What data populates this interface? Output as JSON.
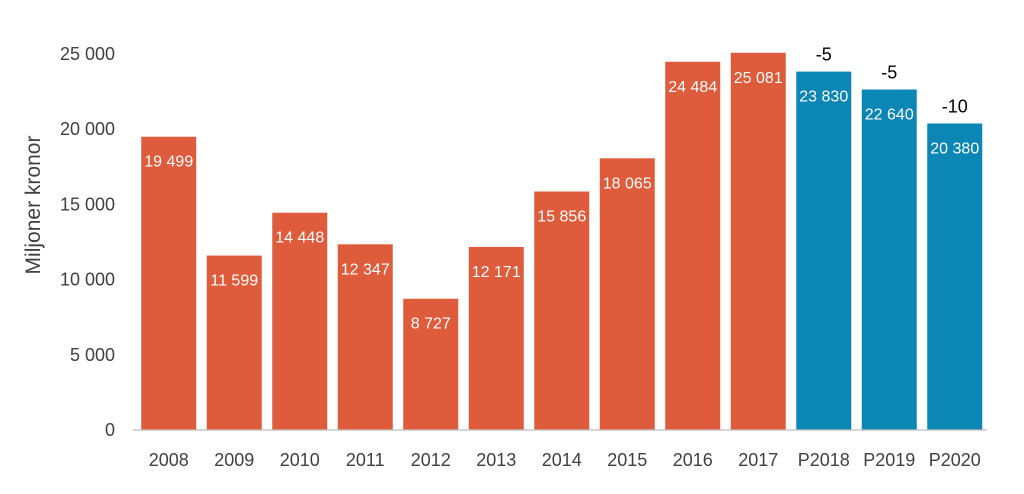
{
  "chart_data": {
    "type": "bar",
    "title": "",
    "xlabel": "",
    "ylabel": "Miljoner kronor",
    "ylim": [
      0,
      25000
    ],
    "yticks": [
      0,
      5000,
      10000,
      15000,
      20000,
      25000
    ],
    "ytick_labels": [
      "0",
      "5 000",
      "10 000",
      "15 000",
      "20 000",
      "25 000"
    ],
    "grid": false,
    "categories": [
      "2008",
      "2009",
      "2010",
      "2011",
      "2012",
      "2013",
      "2014",
      "2015",
      "2016",
      "2017",
      "P2018",
      "P2019",
      "P2020"
    ],
    "values": [
      19499,
      11599,
      14448,
      12347,
      8727,
      12171,
      15856,
      18065,
      24484,
      25081,
      23830,
      22640,
      20380
    ],
    "value_labels": [
      "19 499",
      "11 599",
      "14 448",
      "12 347",
      "8 727",
      "12 171",
      "15 856",
      "18 065",
      "24 484",
      "25 081",
      "23 830",
      "22 640",
      "20 380"
    ],
    "colors": [
      "#de5b3b",
      "#de5b3b",
      "#de5b3b",
      "#de5b3b",
      "#de5b3b",
      "#de5b3b",
      "#de5b3b",
      "#de5b3b",
      "#de5b3b",
      "#de5b3b",
      "#0b86b5",
      "#0b86b5",
      "#0b86b5"
    ],
    "annotations": [
      "",
      "",
      "",
      "",
      "",
      "",
      "",
      "",
      "",
      "",
      "-5",
      "-5",
      "-10"
    ]
  }
}
